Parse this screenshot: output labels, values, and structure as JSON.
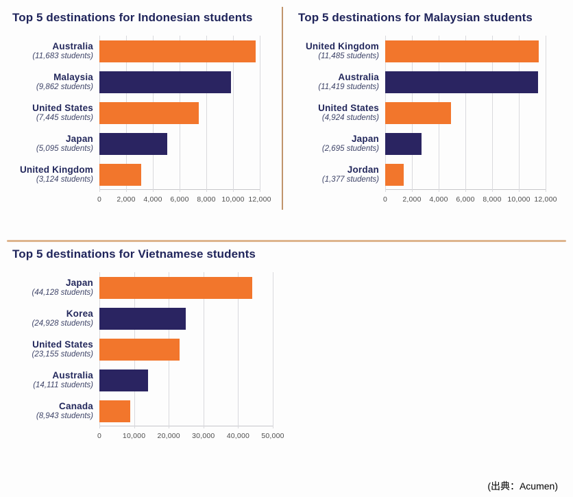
{
  "page": {
    "source_note": "(出典：Acumen)"
  },
  "colors": {
    "orange": "#F2762C",
    "navy": "#2A2461",
    "title_text": "#20255B",
    "country_text": "#23285C",
    "value_text": "#3E4468",
    "axis_text": "#4D4D4D",
    "gridline": "#D9D9DD",
    "axis_line": "#C6C6CA",
    "divider_vertical": "#C0946C",
    "divider_horizontal": "#DDB48D"
  },
  "chart_data": [
    {
      "id": "indonesian-students",
      "type": "bar",
      "orientation": "horizontal",
      "title": "Top 5 destinations for Indonesian students",
      "categories": [
        "Australia",
        "Malaysia",
        "United States",
        "Japan",
        "United Kingdom"
      ],
      "value_labels": [
        "(11,683 students)",
        "(9,862 students)",
        "(7,445 students)",
        "(5,095 students)",
        "(3,124 students)"
      ],
      "values": [
        11683,
        9862,
        7445,
        5095,
        3124
      ],
      "bar_colors": [
        "#F2762C",
        "#2A2461",
        "#F2762C",
        "#2A2461",
        "#F2762C"
      ],
      "xlim": [
        0,
        12000
      ],
      "x_ticks": [
        "0",
        "2,000",
        "4,000",
        "6,000",
        "8,000",
        "10,000",
        "12,000"
      ],
      "grid": true,
      "legend": false
    },
    {
      "id": "malaysian-students",
      "type": "bar",
      "orientation": "horizontal",
      "title": "Top 5 destinations for Malaysian students",
      "categories": [
        "United Kingdom",
        "Australia",
        "United States",
        "Japan",
        "Jordan"
      ],
      "value_labels": [
        "(11,485 students)",
        "(11,419 students)",
        "(4,924 students)",
        "(2,695 students)",
        "(1,377 students)"
      ],
      "values": [
        11485,
        11419,
        4924,
        2695,
        1377
      ],
      "bar_colors": [
        "#F2762C",
        "#2A2461",
        "#F2762C",
        "#2A2461",
        "#F2762C"
      ],
      "xlim": [
        0,
        12000
      ],
      "x_ticks": [
        "0",
        "2,000",
        "4,000",
        "6,000",
        "8,000",
        "10,000",
        "12,000"
      ],
      "grid": true,
      "legend": false
    },
    {
      "id": "vietnamese-students",
      "type": "bar",
      "orientation": "horizontal",
      "title": "Top 5 destinations for Vietnamese students",
      "categories": [
        "Japan",
        "Korea",
        "United States",
        "Australia",
        "Canada"
      ],
      "value_labels": [
        "(44,128 students)",
        "(24,928 students)",
        "(23,155 students)",
        "(14,111 students)",
        "(8,943 students)"
      ],
      "values": [
        44128,
        24928,
        23155,
        14111,
        8943
      ],
      "bar_colors": [
        "#F2762C",
        "#2A2461",
        "#F2762C",
        "#2A2461",
        "#F2762C"
      ],
      "xlim": [
        0,
        50000
      ],
      "x_ticks": [
        "0",
        "10,000",
        "20,000",
        "30,000",
        "40,000",
        "50,000"
      ],
      "grid": true,
      "legend": false
    }
  ]
}
